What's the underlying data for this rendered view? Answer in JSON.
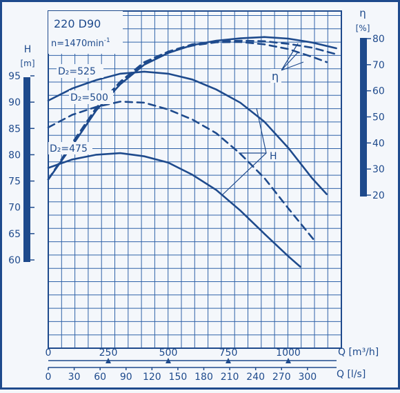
{
  "chart_data": {
    "type": "line",
    "title": "220 D90",
    "subtitle": "n=1470min",
    "subtitle_exp": "-1",
    "grid": true,
    "colors": {
      "ink": "#1e4a8c",
      "grid": "#2f62a8",
      "paper": "#f4f7fb"
    },
    "axes": {
      "head": {
        "symbol": "H",
        "unit": "[m]",
        "range": [
          60,
          95
        ],
        "ticks": [
          60,
          65,
          70,
          75,
          80,
          85,
          90,
          95
        ]
      },
      "efficiency": {
        "symbol": "η",
        "unit": "[%]",
        "range": [
          20,
          80
        ],
        "ticks": [
          20,
          30,
          40,
          50,
          60,
          70,
          80
        ]
      },
      "flow_m3h": {
        "label": "Q [m³/h]",
        "range": [
          0,
          1200
        ],
        "ticks": [
          0,
          250,
          500,
          750,
          1000
        ]
      },
      "flow_ls": {
        "label": "Q [l/s]",
        "range": [
          0,
          333.3
        ],
        "ticks": [
          0,
          30,
          60,
          90,
          120,
          150,
          180,
          210,
          240,
          270,
          300
        ]
      }
    },
    "impeller_labels": [
      "D₂=525",
      "D₂=500",
      "D₂=475"
    ],
    "annotations": {
      "head_curves": "H",
      "efficiency_curves": "η"
    },
    "series": [
      {
        "name": "D₂=525",
        "kind": "H",
        "style": "solid",
        "axis": "head",
        "x": [
          0,
          100,
          200,
          300,
          400,
          500,
          600,
          700,
          800,
          900,
          1000,
          1100,
          1160
        ],
        "y": [
          90.3,
          92.6,
          94.2,
          95.4,
          95.8,
          95.4,
          94.3,
          92.4,
          89.9,
          86.3,
          81.3,
          75.5,
          72.5
        ]
      },
      {
        "name": "D₂=500",
        "kind": "H",
        "style": "dashed",
        "axis": "head",
        "x": [
          0,
          100,
          200,
          300,
          400,
          500,
          600,
          700,
          800,
          900,
          1000,
          1100,
          1110
        ],
        "y": [
          85.2,
          87.6,
          89.1,
          90.1,
          89.9,
          88.6,
          86.7,
          84.1,
          80.2,
          75.6,
          69.8,
          64.2,
          63.6
        ]
      },
      {
        "name": "D₂=475",
        "kind": "H",
        "style": "solid",
        "axis": "head",
        "x": [
          0,
          100,
          200,
          300,
          400,
          500,
          600,
          700,
          800,
          900,
          1000,
          1050
        ],
        "y": [
          77.5,
          79.1,
          80.0,
          80.3,
          79.7,
          78.5,
          76.2,
          73.3,
          69.4,
          65.0,
          60.7,
          58.7
        ]
      },
      {
        "name": "η D₂=525",
        "kind": "eta",
        "style": "solid",
        "axis": "efficiency",
        "x": [
          0,
          100,
          200,
          300,
          400,
          500,
          600,
          700,
          800,
          900,
          1000,
          1100,
          1200
        ],
        "y": [
          26.0,
          39.0,
          52.5,
          62.5,
          70.0,
          74.5,
          77.5,
          79.2,
          80.1,
          80.6,
          80.0,
          78.5,
          76.3
        ]
      },
      {
        "name": "η D₂=500",
        "kind": "eta",
        "style": "dashed",
        "axis": "efficiency",
        "x": [
          0,
          100,
          200,
          300,
          400,
          500,
          600,
          700,
          800,
          900,
          1000,
          1100,
          1200
        ],
        "y": [
          26.0,
          39.5,
          53.0,
          63.0,
          70.5,
          75.0,
          77.8,
          78.9,
          79.2,
          79.0,
          78.0,
          76.5,
          74.0
        ]
      },
      {
        "name": "η D₂=475",
        "kind": "eta",
        "style": "dashed",
        "axis": "efficiency",
        "x": [
          0,
          100,
          200,
          300,
          400,
          500,
          600,
          700,
          800,
          900,
          1000,
          1100,
          1160
        ],
        "y": [
          26.0,
          40.0,
          53.5,
          63.5,
          71.0,
          75.0,
          77.3,
          78.6,
          78.7,
          77.8,
          76.0,
          73.0,
          71.0
        ]
      }
    ]
  }
}
